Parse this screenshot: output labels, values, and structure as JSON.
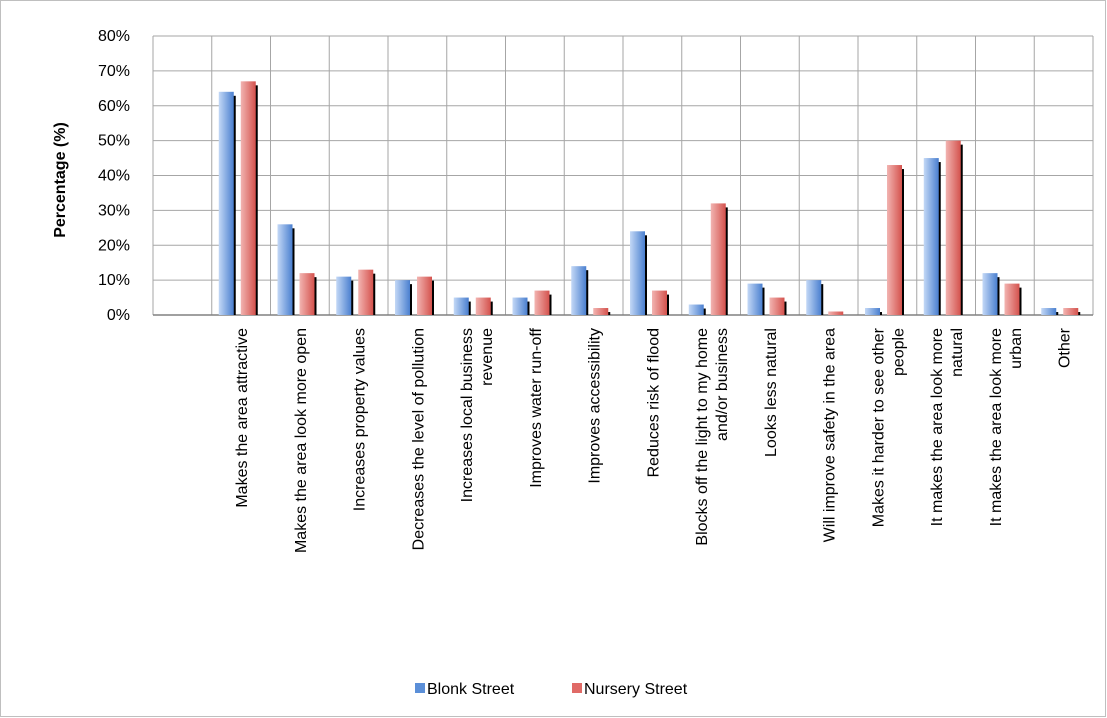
{
  "chart_data": {
    "type": "bar",
    "title": "",
    "xlabel": "",
    "ylabel": "Percentage (%)",
    "ylim": [
      0,
      80
    ],
    "yticks": [
      "0%",
      "10%",
      "20%",
      "30%",
      "40%",
      "50%",
      "60%",
      "70%",
      "80%"
    ],
    "grid": true,
    "legend_position": "bottom",
    "categories": [
      "",
      "Makes the area attractive",
      "Makes the area look more open",
      "Increases property values",
      "Decreases the level of pollution",
      "Increases local business revenue",
      "Improves water run-off",
      "Improves accessibility",
      "Reduces risk of flood",
      "Blocks off the light to my home and/or business",
      "Looks less natural",
      "Will improve safety in the area",
      "Makes it harder to see other people",
      "It makes the area look more natural",
      "It makes the area look more urban",
      "Other"
    ],
    "category_lines": [
      [],
      [
        "Makes the area attractive"
      ],
      [
        "Makes the area look more open"
      ],
      [
        "Increases property values"
      ],
      [
        "Decreases the level of pollution"
      ],
      [
        "Increases local business",
        "revenue"
      ],
      [
        "Improves water run-off"
      ],
      [
        "Improves accessibility"
      ],
      [
        "Reduces risk of flood"
      ],
      [
        "Blocks off the light to my home",
        "and/or business"
      ],
      [
        "Looks less natural"
      ],
      [
        "Will improve safety in the area"
      ],
      [
        "Makes it harder to see other",
        "people"
      ],
      [
        "It makes the area look more",
        "natural"
      ],
      [
        "It makes the area look more",
        "urban"
      ],
      [
        "Other"
      ]
    ],
    "series": [
      {
        "name": "Blonk Street",
        "color": "#5b8fd8",
        "values": [
          0,
          64,
          26,
          11,
          10,
          5,
          5,
          14,
          24,
          3,
          9,
          10,
          2,
          45,
          12,
          2
        ]
      },
      {
        "name": "Nursery Street",
        "color": "#e06a66",
        "values": [
          0,
          67,
          12,
          13,
          11,
          5,
          7,
          2,
          7,
          32,
          5,
          1,
          43,
          50,
          9,
          2
        ]
      }
    ]
  }
}
